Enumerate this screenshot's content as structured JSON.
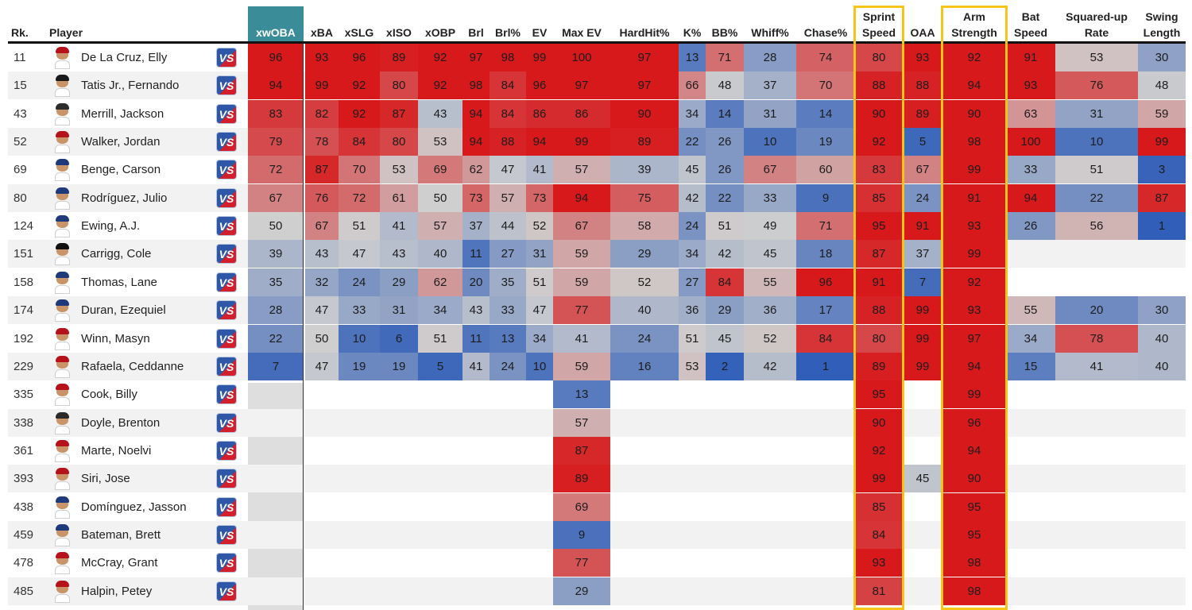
{
  "chart_data": {
    "type": "table",
    "columns": [
      "Rk.",
      "Player",
      "xwOBA",
      "xBA",
      "xSLG",
      "xISO",
      "xOBP",
      "Brl",
      "Brl%",
      "EV",
      "Max EV",
      "HardHit%",
      "K%",
      "BB%",
      "Whiff%",
      "Chase%",
      "Sprint\nSpeed",
      "OAA",
      "Arm\nStrength",
      "Bat\nSpeed",
      "Squared-up\nRate",
      "Swing\nLength"
    ],
    "highlighted_columns": [
      "Sprint\nSpeed",
      "Arm\nStrength"
    ],
    "rows": [
      {
        "rank": "11",
        "player": "De La Cruz, Elly",
        "values": [
          96,
          93,
          96,
          89,
          92,
          97,
          98,
          99,
          100,
          97,
          13,
          71,
          28,
          74,
          80,
          93,
          92,
          91,
          53,
          30
        ]
      },
      {
        "rank": "15",
        "player": "Tatis Jr., Fernando",
        "values": [
          94,
          99,
          92,
          80,
          92,
          98,
          84,
          96,
          97,
          97,
          66,
          48,
          37,
          70,
          88,
          88,
          94,
          93,
          76,
          48
        ]
      },
      {
        "rank": "43",
        "player": "Merrill, Jackson",
        "values": [
          83,
          82,
          92,
          87,
          43,
          94,
          84,
          86,
          86,
          90,
          34,
          14,
          31,
          14,
          90,
          89,
          90,
          63,
          31,
          59
        ]
      },
      {
        "rank": "52",
        "player": "Walker, Jordan",
        "values": [
          79,
          78,
          84,
          80,
          53,
          94,
          88,
          94,
          99,
          89,
          22,
          26,
          10,
          19,
          92,
          5,
          98,
          100,
          10,
          99
        ]
      },
      {
        "rank": "69",
        "player": "Benge, Carson",
        "values": [
          72,
          87,
          70,
          53,
          69,
          62,
          47,
          41,
          57,
          39,
          45,
          26,
          67,
          60,
          83,
          67,
          99,
          33,
          51,
          3
        ]
      },
      {
        "rank": "80",
        "player": "Rodríguez, Julio",
        "values": [
          67,
          76,
          72,
          61,
          50,
          73,
          57,
          73,
          94,
          75,
          42,
          22,
          33,
          9,
          85,
          24,
          91,
          94,
          22,
          87
        ]
      },
      {
        "rank": "124",
        "player": "Ewing, A.J.",
        "values": [
          50,
          67,
          51,
          41,
          57,
          37,
          44,
          52,
          67,
          58,
          24,
          51,
          49,
          71,
          95,
          91,
          93,
          26,
          56,
          1
        ]
      },
      {
        "rank": "151",
        "player": "Carrigg, Cole",
        "values": [
          39,
          43,
          47,
          43,
          40,
          11,
          27,
          31,
          59,
          29,
          34,
          42,
          45,
          18,
          87,
          37,
          99,
          null,
          null,
          null
        ]
      },
      {
        "rank": "158",
        "player": "Thomas, Lane",
        "values": [
          35,
          32,
          24,
          29,
          62,
          20,
          35,
          51,
          59,
          52,
          27,
          84,
          55,
          96,
          91,
          7,
          92,
          null,
          null,
          null
        ]
      },
      {
        "rank": "174",
        "player": "Duran, Ezequiel",
        "values": [
          28,
          47,
          33,
          31,
          34,
          43,
          33,
          47,
          77,
          40,
          36,
          29,
          36,
          17,
          88,
          99,
          93,
          55,
          20,
          30
        ]
      },
      {
        "rank": "192",
        "player": "Winn, Masyn",
        "values": [
          22,
          50,
          10,
          6,
          51,
          11,
          13,
          34,
          41,
          24,
          51,
          45,
          52,
          84,
          80,
          99,
          97,
          34,
          78,
          40
        ]
      },
      {
        "rank": "229",
        "player": "Rafaela, Ceddanne",
        "values": [
          7,
          47,
          19,
          19,
          5,
          41,
          24,
          10,
          59,
          16,
          53,
          2,
          42,
          1,
          89,
          99,
          94,
          15,
          41,
          40
        ]
      },
      {
        "rank": "335",
        "player": "Cook, Billy",
        "values": [
          null,
          null,
          null,
          null,
          null,
          null,
          null,
          null,
          13,
          null,
          null,
          null,
          null,
          null,
          95,
          null,
          99,
          null,
          null,
          null
        ]
      },
      {
        "rank": "338",
        "player": "Doyle, Brenton",
        "values": [
          null,
          null,
          null,
          null,
          null,
          null,
          null,
          null,
          57,
          null,
          null,
          null,
          null,
          null,
          90,
          null,
          96,
          null,
          null,
          null
        ]
      },
      {
        "rank": "361",
        "player": "Marte, Noelvi",
        "values": [
          null,
          null,
          null,
          null,
          null,
          null,
          null,
          null,
          87,
          null,
          null,
          null,
          null,
          null,
          92,
          null,
          94,
          null,
          null,
          null
        ]
      },
      {
        "rank": "393",
        "player": "Siri, Jose",
        "values": [
          null,
          null,
          null,
          null,
          null,
          null,
          null,
          null,
          89,
          null,
          null,
          null,
          null,
          null,
          99,
          45,
          90,
          null,
          null,
          null
        ]
      },
      {
        "rank": "438",
        "player": "Domínguez, Jasson",
        "values": [
          null,
          null,
          null,
          null,
          null,
          null,
          null,
          null,
          69,
          null,
          null,
          null,
          null,
          null,
          85,
          null,
          95,
          null,
          null,
          null
        ]
      },
      {
        "rank": "459",
        "player": "Bateman, Brett",
        "values": [
          null,
          null,
          null,
          null,
          null,
          null,
          null,
          null,
          9,
          null,
          null,
          null,
          null,
          null,
          84,
          null,
          95,
          null,
          null,
          null
        ]
      },
      {
        "rank": "478",
        "player": "McCray, Grant",
        "values": [
          null,
          null,
          null,
          null,
          null,
          null,
          null,
          null,
          77,
          null,
          null,
          null,
          null,
          null,
          93,
          null,
          98,
          null,
          null,
          null
        ]
      },
      {
        "rank": "485",
        "player": "Halpin, Petey",
        "values": [
          null,
          null,
          null,
          null,
          null,
          null,
          null,
          null,
          29,
          null,
          null,
          null,
          null,
          null,
          81,
          null,
          98,
          null,
          null,
          null
        ]
      }
    ],
    "color_scale": {
      "low": "#2e5cb8",
      "mid": "#cfcfcf",
      "high": "#d7191c",
      "stripe": "#f2f2f2",
      "header_accent": "#3a8d98",
      "highlight_border": "#f5c518"
    },
    "vs_badge_text": "VS",
    "cap_colors": [
      "#b5121b",
      "#1a1a1a",
      "#2b2b2b",
      "#b5121b",
      "#1f3a7a",
      "#1f3a7a",
      "#1f3a7a",
      "#111111",
      "#1f3a7a",
      "#1f3a7a",
      "#b5121b",
      "#b5121b",
      "#b5121b",
      "#2a2a2a",
      "#b5121b",
      "#b5121b",
      "#1f3a7a",
      "#1f3a7a",
      "#b5121b",
      "#b5121b"
    ]
  }
}
